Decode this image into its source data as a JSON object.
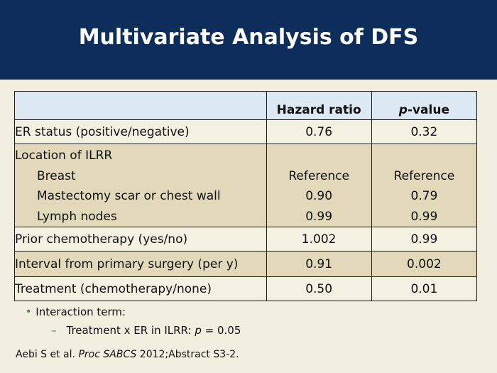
{
  "title": "Multivariate Analysis of DFS",
  "table": {
    "headers": {
      "col1": "",
      "col2": "Hazard ratio",
      "col3_italic": "p",
      "col3_rest": "-value"
    },
    "rows": {
      "er": {
        "label": "ER status (positive/negative)",
        "hr": "0.76",
        "p": "0.32"
      },
      "location": {
        "label": "Location of ILRR",
        "items": [
          {
            "label": "Breast",
            "hr": "Reference",
            "p": "Reference"
          },
          {
            "label": "Mastectomy scar or chest wall",
            "hr": "0.90",
            "p": "0.79"
          },
          {
            "label": "Lymph nodes",
            "hr": "0.99",
            "p": "0.99"
          }
        ]
      },
      "prior": {
        "label": "Prior chemotherapy (yes/no)",
        "hr": "1.002",
        "p": "0.99"
      },
      "interval": {
        "label": "Interval from primary surgery (per y)",
        "hr": "0.91",
        "p": "0.002"
      },
      "treatment": {
        "label": "Treatment (chemotherapy/none)",
        "hr": "0.50",
        "p": "0.01"
      }
    }
  },
  "bullets": {
    "main": "Interaction term:",
    "sub_prefix": "Treatment x ER in ILRR: ",
    "sub_italic": "p",
    "sub_suffix": " = 0.05"
  },
  "citation": {
    "authors": "Aebi S et al. ",
    "journal": "Proc SABCS",
    "rest": " 2012;Abstract S3-2."
  },
  "colors": {
    "header_bg": "#0d2d5a",
    "table_header_bg": "#dce9f2",
    "row_light": "#f4f0e2",
    "row_dark": "#e2d9bb",
    "bullet": "#3a8a4a"
  }
}
